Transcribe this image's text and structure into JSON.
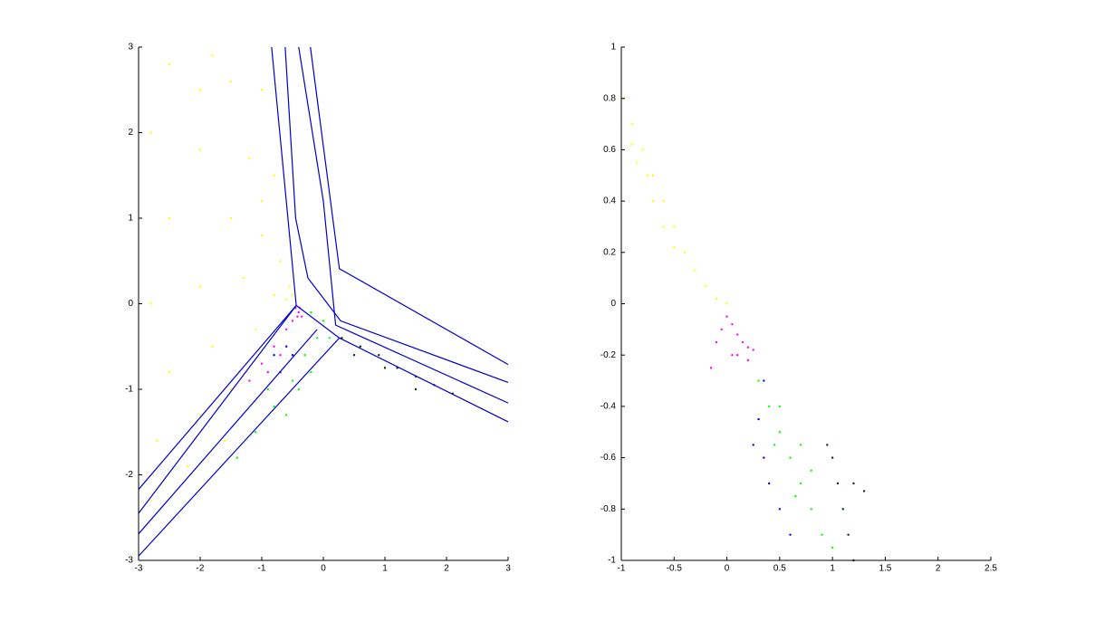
{
  "chart_data": [
    {
      "type": "scatter",
      "xlim": [
        -3,
        3
      ],
      "ylim": [
        -3,
        3
      ],
      "xticks": [
        -3,
        -2,
        -1,
        0,
        1,
        2,
        3
      ],
      "yticks": [
        -3,
        -2,
        -1,
        0,
        1,
        2,
        3
      ],
      "series": [
        {
          "mode": "markers",
          "color": "#ffff00",
          "x": [
            -2.5,
            -2,
            -1.5,
            -1,
            -2.8,
            -2,
            -1.2,
            -0.8,
            -2.5,
            -1.5,
            -1,
            -0.7,
            -2.8,
            -2,
            -1.3,
            -0.8,
            -0.6,
            -2.5,
            -1.8,
            -1.1,
            -2.7,
            -2,
            -1.5,
            -2.8,
            -2.2,
            -1.6,
            -0.5,
            -0.55,
            -1,
            -1.8
          ],
          "y": [
            2.8,
            2.5,
            2.6,
            2.5,
            2,
            1.8,
            1.7,
            1.5,
            1,
            1,
            0.8,
            0.5,
            0,
            0.2,
            0.3,
            0.1,
            0.05,
            -0.8,
            -0.5,
            -0.3,
            -1.6,
            -1.3,
            -1,
            -2.3,
            -1.9,
            -1.6,
            0.1,
            0.2,
            1.2,
            2.9
          ]
        },
        {
          "mode": "markers",
          "color": "#ff00ff",
          "x": [
            -0.45,
            -0.4,
            -0.35,
            -0.5,
            -0.6,
            -0.8,
            -1,
            -1.2,
            -0.7,
            -0.9,
            -0.38,
            -0.42
          ],
          "y": [
            -0.05,
            -0.1,
            -0.15,
            -0.2,
            -0.3,
            -0.5,
            -0.7,
            -0.9,
            -0.6,
            -0.8,
            -0.05,
            -0.15
          ]
        },
        {
          "mode": "markers",
          "color": "#00ff00",
          "x": [
            -0.2,
            0,
            -0.1,
            -0.3,
            -0.5,
            -0.8,
            -1.1,
            -0.2,
            -0.6,
            0.1,
            -0.4,
            -1.4,
            -0.9
          ],
          "y": [
            -0.1,
            -0.2,
            -0.4,
            -0.6,
            -0.9,
            -1.2,
            -1.5,
            -0.8,
            -1.3,
            -0.4,
            -1,
            -1.8,
            -1
          ]
        },
        {
          "mode": "markers",
          "color": "#0000ff",
          "x": [
            -0.6,
            -0.7,
            -0.5,
            -0.8
          ],
          "y": [
            -0.5,
            -0.8,
            -0.6,
            -0.6
          ]
        },
        {
          "mode": "markers",
          "color": "#003300",
          "x": [
            0.3,
            0.6,
            0.9,
            1.2,
            1.5,
            1.8,
            2.1,
            0.5,
            1,
            1.5
          ],
          "y": [
            -0.4,
            -0.5,
            -0.6,
            -0.75,
            -0.85,
            -0.95,
            -1.05,
            -0.6,
            -0.75,
            -1
          ]
        },
        {
          "mode": "lines",
          "color": "#0000cc",
          "x": [
            -0.21,
            0.26,
            3
          ],
          "y": [
            3,
            0.41,
            -0.71
          ]
        },
        {
          "mode": "lines",
          "color": "#0000cc",
          "x": [
            -0.84,
            -0.44,
            -3
          ],
          "y": [
            3,
            -0.02,
            -2.45
          ]
        },
        {
          "mode": "lines",
          "color": "#0000cc",
          "x": [
            -0.44,
            0.26,
            3
          ],
          "y": [
            -0.02,
            -0.4,
            -1.38
          ]
        },
        {
          "mode": "lines",
          "color": "#0000cc",
          "x": [
            0.26,
            -3
          ],
          "y": [
            -0.4,
            -2.95
          ]
        },
        {
          "mode": "lines",
          "color": "#0000cc",
          "x": [
            -0.44,
            -3
          ],
          "y": [
            -0.02,
            -2.17
          ]
        },
        {
          "mode": "lines",
          "color": "#0000cc",
          "x": [
            -0.62,
            -0.45,
            -0.25,
            0.28,
            3
          ],
          "y": [
            3,
            1,
            0.3,
            -0.2,
            -0.92
          ]
        },
        {
          "mode": "lines",
          "color": "#0000cc",
          "x": [
            -0.4,
            0,
            0.2,
            3
          ],
          "y": [
            3,
            1.2,
            -0.25,
            -1.16
          ]
        },
        {
          "mode": "lines",
          "color": "#0000cc",
          "x": [
            -0.1,
            -3
          ],
          "y": [
            -0.3,
            -2.69
          ]
        }
      ]
    },
    {
      "type": "scatter",
      "xlim": [
        -1,
        2.5
      ],
      "ylim": [
        -1,
        1
      ],
      "xticks": [
        -1,
        -0.5,
        0,
        0.5,
        1,
        1.5,
        2,
        2.5
      ],
      "yticks": [
        -1,
        -0.8,
        -0.6,
        -0.4,
        -0.2,
        0,
        0.2,
        0.4,
        0.6,
        0.8,
        1
      ],
      "series": [
        {
          "mode": "markers",
          "color": "#ffff00",
          "x": [
            -0.98,
            -0.9,
            -0.8,
            -0.7,
            -0.6,
            -0.5,
            -0.4,
            -0.3,
            -0.2,
            -0.1,
            0,
            -0.85,
            -0.7,
            -0.6,
            -0.75,
            -0.5,
            -0.9
          ],
          "y": [
            0.8,
            0.7,
            0.6,
            0.5,
            0.4,
            0.3,
            0.2,
            0.13,
            0.07,
            0.02,
            0,
            0.55,
            0.4,
            0.3,
            0.5,
            0.22,
            0.62
          ]
        },
        {
          "mode": "markers",
          "color": "#ff00ff",
          "x": [
            0,
            0.05,
            0.1,
            0.15,
            0.2,
            0.25,
            -0.05,
            0.1,
            0.2,
            -0.1,
            0.05,
            -0.15
          ],
          "y": [
            -0.05,
            -0.08,
            -0.12,
            -0.15,
            -0.17,
            -0.18,
            -0.1,
            -0.2,
            -0.22,
            -0.15,
            -0.2,
            -0.25
          ]
        },
        {
          "mode": "markers",
          "color": "#00ff00",
          "x": [
            0.3,
            0.4,
            0.5,
            0.6,
            0.7,
            0.8,
            0.9,
            0.5,
            0.7,
            0.8,
            0.45,
            0.65,
            1
          ],
          "y": [
            -0.3,
            -0.4,
            -0.5,
            -0.6,
            -0.7,
            -0.8,
            -0.9,
            -0.4,
            -0.55,
            -0.65,
            -0.55,
            -0.75,
            -0.95
          ]
        },
        {
          "mode": "markers",
          "color": "#0000ff",
          "x": [
            0.35,
            0.3,
            0.25,
            0.4,
            0.5,
            0.6,
            0.35
          ],
          "y": [
            -0.3,
            -0.45,
            -0.55,
            -0.7,
            -0.8,
            -0.9,
            -0.6
          ]
        },
        {
          "mode": "markers",
          "color": "#003300",
          "x": [
            0.95,
            1,
            1.05,
            1.1,
            1.15,
            1.2,
            1.2,
            1.3
          ],
          "y": [
            -0.55,
            -0.6,
            -0.7,
            -0.8,
            -0.9,
            -1,
            -0.7,
            -0.73
          ]
        }
      ]
    }
  ]
}
